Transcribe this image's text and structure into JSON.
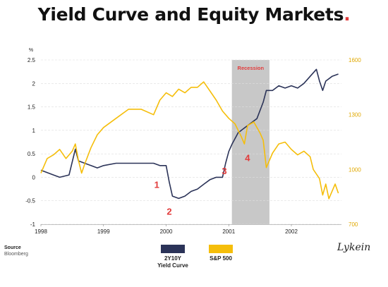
{
  "title": "Yield Curve and Equity Markets",
  "title_dot": ".",
  "source": {
    "label": "Source",
    "value": "Bloomberg"
  },
  "legend": [
    {
      "name": "2Y10Y Yield Curve",
      "line1": "2Y10Y",
      "line2": "Yield Curve",
      "color": "#2b3358"
    },
    {
      "name": "S&P 500",
      "line1": "S&P 500",
      "line2": "",
      "color": "#f5be0b"
    }
  ],
  "logo": "Lykein",
  "colors": {
    "accent": "#e23b3b",
    "yield": "#2b3358",
    "sp500": "#f5be0b",
    "recession": "#c8c8c8"
  },
  "chart_data": {
    "type": "line",
    "x_ticks": [
      "1998",
      "1999",
      "2000",
      "2001",
      "2002"
    ],
    "x_tick_values": [
      1998,
      1999,
      2000,
      2001,
      2002
    ],
    "xlim": [
      1998,
      2002.8
    ],
    "left_axis": {
      "unit": "%",
      "ylim": [
        -1,
        2.5
      ],
      "ticks": [
        "-1",
        "-0.5",
        "0",
        "0.5",
        "1",
        "1.5",
        "2",
        "2.5"
      ],
      "tick_values": [
        -1,
        -0.5,
        0,
        0.5,
        1,
        1.5,
        2,
        2.5
      ]
    },
    "right_axis": {
      "ylim": [
        700,
        1600
      ],
      "ticks": [
        "700",
        "1000",
        "1300",
        "1600"
      ],
      "tick_values": [
        700,
        1000,
        1300,
        1600
      ]
    },
    "recession": {
      "label": "Recession",
      "start": 2001.05,
      "end": 2001.65
    },
    "series": [
      {
        "name": "2Y10Y Yield Curve",
        "axis": "left",
        "x": [
          1998.0,
          1998.1,
          1998.2,
          1998.3,
          1998.45,
          1998.55,
          1998.6,
          1998.7,
          1998.8,
          1998.9,
          1999.0,
          1999.2,
          1999.4,
          1999.6,
          1999.8,
          1999.9,
          2000.0,
          2000.05,
          2000.1,
          2000.2,
          2000.3,
          2000.4,
          2000.5,
          2000.6,
          2000.7,
          2000.8,
          2000.9,
          2000.95,
          2001.0,
          2001.05,
          2001.15,
          2001.25,
          2001.35,
          2001.45,
          2001.55,
          2001.6,
          2001.7,
          2001.8,
          2001.9,
          2002.0,
          2002.1,
          2002.2,
          2002.3,
          2002.4,
          2002.45,
          2002.5,
          2002.55,
          2002.65,
          2002.75
        ],
        "values": [
          0.15,
          0.1,
          0.05,
          0.0,
          0.05,
          0.6,
          0.35,
          0.3,
          0.25,
          0.2,
          0.25,
          0.3,
          0.3,
          0.3,
          0.3,
          0.25,
          0.25,
          -0.1,
          -0.4,
          -0.45,
          -0.4,
          -0.3,
          -0.25,
          -0.15,
          -0.05,
          0.0,
          0.0,
          0.3,
          0.55,
          0.7,
          0.95,
          1.05,
          1.15,
          1.25,
          1.6,
          1.85,
          1.85,
          1.95,
          1.9,
          1.95,
          1.9,
          2.0,
          2.15,
          2.3,
          2.05,
          1.85,
          2.05,
          2.15,
          2.2
        ]
      },
      {
        "name": "S&P 500",
        "axis": "right",
        "x": [
          1998.0,
          1998.1,
          1998.2,
          1998.3,
          1998.4,
          1998.5,
          1998.55,
          1998.6,
          1998.65,
          1998.7,
          1998.8,
          1998.9,
          1999.0,
          1999.2,
          1999.4,
          1999.6,
          1999.8,
          1999.9,
          2000.0,
          2000.1,
          2000.2,
          2000.3,
          2000.4,
          2000.5,
          2000.6,
          2000.7,
          2000.8,
          2000.9,
          2001.0,
          2001.1,
          2001.2,
          2001.25,
          2001.3,
          2001.4,
          2001.5,
          2001.55,
          2001.6,
          2001.7,
          2001.8,
          2001.9,
          2002.0,
          2002.1,
          2002.2,
          2002.3,
          2002.35,
          2002.45,
          2002.5,
          2002.55,
          2002.6,
          2002.7,
          2002.75
        ],
        "values": [
          980,
          1060,
          1080,
          1110,
          1060,
          1100,
          1140,
          1050,
          980,
          1030,
          1120,
          1190,
          1230,
          1280,
          1330,
          1330,
          1300,
          1380,
          1420,
          1400,
          1440,
          1420,
          1450,
          1450,
          1480,
          1430,
          1380,
          1320,
          1280,
          1250,
          1180,
          1140,
          1240,
          1260,
          1200,
          1160,
          1010,
          1090,
          1140,
          1150,
          1110,
          1080,
          1100,
          1070,
          1000,
          950,
          860,
          920,
          840,
          920,
          870
        ]
      }
    ],
    "annotations": [
      {
        "text": "1",
        "x": 1999.85,
        "y": -0.15
      },
      {
        "text": "2",
        "x": 2000.05,
        "y": -0.72
      },
      {
        "text": "3",
        "x": 2000.93,
        "y": 0.14
      },
      {
        "text": "4",
        "x": 2001.3,
        "y": 0.42
      }
    ]
  }
}
